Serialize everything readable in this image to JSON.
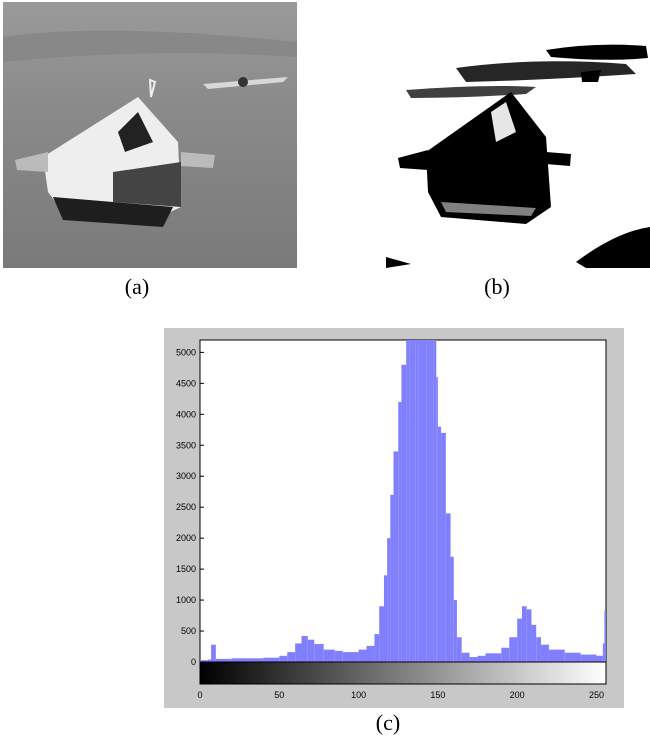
{
  "captions": {
    "a": "(a)",
    "b": "(b)",
    "c": "(c)"
  },
  "colors": {
    "bar": "#8080ff",
    "plot_bg": "#ffffff",
    "frame": "#c8c8c8"
  },
  "chart_data": {
    "type": "bar",
    "title": "",
    "xlabel": "",
    "ylabel": "",
    "xlim": [
      0,
      256
    ],
    "ylim": [
      0,
      5200
    ],
    "x_ticks": [
      0,
      50,
      100,
      150,
      200,
      250
    ],
    "y_ticks": [
      0,
      500,
      1000,
      1500,
      2000,
      2500,
      3000,
      3500,
      4000,
      4500,
      5000
    ],
    "grid": false,
    "colorbar": "grayscale 0-255",
    "x": [
      0,
      5,
      7,
      10,
      20,
      30,
      40,
      50,
      55,
      60,
      64,
      68,
      72,
      78,
      85,
      90,
      100,
      105,
      110,
      113,
      116,
      118,
      120,
      122,
      125,
      127,
      130,
      132,
      134,
      136,
      138,
      140,
      143,
      145,
      147,
      149,
      150,
      152,
      155,
      158,
      160,
      162,
      165,
      170,
      175,
      180,
      190,
      195,
      200,
      203,
      206,
      209,
      212,
      215,
      220,
      230,
      240,
      250,
      254,
      255
    ],
    "values": [
      30,
      40,
      280,
      50,
      60,
      60,
      70,
      100,
      160,
      300,
      420,
      360,
      290,
      200,
      180,
      160,
      200,
      260,
      450,
      900,
      1400,
      2000,
      2700,
      3400,
      4200,
      4800,
      5200,
      5200,
      5200,
      5200,
      5200,
      5200,
      5200,
      5200,
      5200,
      4600,
      3800,
      3700,
      2400,
      1700,
      1000,
      400,
      150,
      80,
      100,
      140,
      230,
      400,
      700,
      900,
      850,
      600,
      400,
      280,
      200,
      150,
      120,
      100,
      300,
      830
    ]
  }
}
